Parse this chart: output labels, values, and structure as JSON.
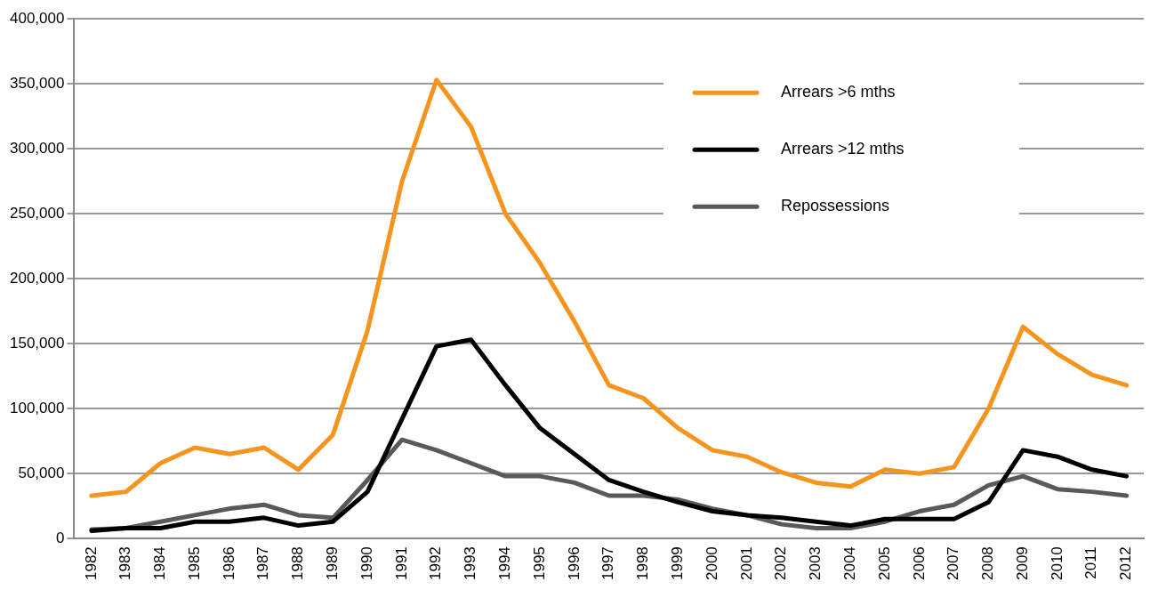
{
  "chart_data": {
    "type": "line",
    "categories": [
      "1982",
      "1983",
      "1984",
      "1985",
      "1986",
      "1987",
      "1988",
      "1989",
      "1990",
      "1991",
      "1992",
      "1993",
      "1994",
      "1995",
      "1996",
      "1997",
      "1998",
      "1999",
      "2000",
      "2001",
      "2002",
      "2003",
      "2004",
      "2005",
      "2006",
      "2007",
      "2008",
      "2009",
      "2010",
      "2011",
      "2012"
    ],
    "series": [
      {
        "name": "Arrears >6 mths",
        "color": "#f7941d",
        "values": [
          33000,
          36000,
          58000,
          70000,
          65000,
          70000,
          53000,
          80000,
          160000,
          275000,
          353000,
          317000,
          250000,
          212000,
          167000,
          118000,
          108000,
          85000,
          68000,
          63000,
          51000,
          43000,
          40000,
          53000,
          50000,
          55000,
          100000,
          163000,
          142000,
          126000,
          118000
        ]
      },
      {
        "name": "Arrears >12 mths",
        "color": "#000000",
        "values": [
          6000,
          8000,
          8000,
          13000,
          13000,
          16000,
          10000,
          13000,
          36000,
          92000,
          148000,
          153000,
          118000,
          85000,
          65000,
          45000,
          36000,
          28000,
          21000,
          18000,
          16000,
          13000,
          10000,
          15000,
          15000,
          15000,
          28000,
          68000,
          63000,
          53000,
          48000
        ]
      },
      {
        "name": "Repossessions",
        "color": "#58595b",
        "values": [
          7000,
          8000,
          13000,
          18000,
          23000,
          26000,
          18000,
          16000,
          45000,
          76000,
          68000,
          58000,
          48000,
          48000,
          43000,
          33000,
          33000,
          30000,
          23000,
          18000,
          11000,
          8000,
          8000,
          13000,
          21000,
          26000,
          41000,
          48000,
          38000,
          36000,
          33000
        ]
      }
    ],
    "ylim": [
      0,
      400000
    ],
    "yticks": [
      {
        "value": 0,
        "label": "0"
      },
      {
        "value": 50000,
        "label": "50,000"
      },
      {
        "value": 100000,
        "label": "100,000"
      },
      {
        "value": 150000,
        "label": "150,000"
      },
      {
        "value": 200000,
        "label": "200,000"
      },
      {
        "value": 250000,
        "label": "250,000"
      },
      {
        "value": 300000,
        "label": "300,000"
      },
      {
        "value": 350000,
        "label": "350,000"
      },
      {
        "value": 400000,
        "label": "400,000"
      }
    ],
    "grid": "y",
    "legend": "top right",
    "marker": "none",
    "line_style": "solid"
  }
}
